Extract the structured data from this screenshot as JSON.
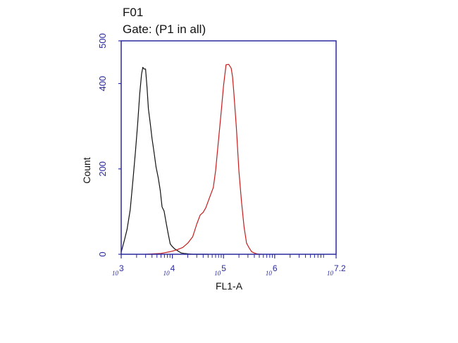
{
  "chart_data": {
    "type": "line",
    "title": "F01",
    "subtitle": "Gate: (P1 in all)",
    "xlabel": "FL1-A",
    "ylabel": "Count",
    "x_scale": "log10",
    "xlim": [
      1000,
      15848932
    ],
    "ylim": [
      0,
      500
    ],
    "y_ticks": [
      "0",
      "200",
      "400",
      "500"
    ],
    "x_ticks": [
      {
        "base": "10",
        "exp": "3"
      },
      {
        "base": "10",
        "exp": "4"
      },
      {
        "base": "10",
        "exp": "5"
      },
      {
        "base": "10",
        "exp": "6"
      },
      {
        "base": "10",
        "exp": "7.2"
      }
    ],
    "grid": false,
    "legend": "none",
    "frame_color": "#2a2aa0",
    "series": [
      {
        "color": "#111111",
        "x": [
          1000,
          1150,
          1300,
          1500,
          1700,
          1900,
          2100,
          2300,
          2500,
          2650,
          2800,
          3000,
          3200,
          3400,
          3700,
          4000,
          4400,
          4800,
          5300,
          5800,
          6300,
          6900,
          7600,
          8300,
          9100,
          10000,
          11000,
          12000,
          13500,
          15000,
          17000,
          20000,
          25000,
          32000,
          40000,
          50000
        ],
        "y": [
          5,
          30,
          60,
          110,
          170,
          240,
          310,
          370,
          420,
          440,
          440,
          430,
          390,
          345,
          300,
          270,
          240,
          210,
          175,
          150,
          115,
          95,
          70,
          50,
          30,
          18,
          13,
          10,
          6,
          3,
          2,
          1,
          0,
          0,
          0,
          0
        ]
      },
      {
        "color": "#c41e1e",
        "x": [
          3000,
          6000,
          9000,
          12000,
          16000,
          20000,
          25000,
          30000,
          35000,
          40000,
          45000,
          50000,
          56000,
          63000,
          70000,
          79000,
          89000,
          100000,
          112000,
          126000,
          141000,
          150000,
          158000,
          178000,
          200000,
          224000,
          251000,
          282000,
          316000,
          355000,
          400000,
          447000,
          500000,
          560000
        ],
        "y": [
          0,
          2,
          6,
          10,
          16,
          26,
          45,
          65,
          90,
          100,
          115,
          120,
          140,
          160,
          190,
          260,
          330,
          400,
          440,
          445,
          440,
          410,
          380,
          300,
          200,
          120,
          65,
          30,
          15,
          6,
          3,
          1,
          0,
          0
        ]
      }
    ]
  }
}
